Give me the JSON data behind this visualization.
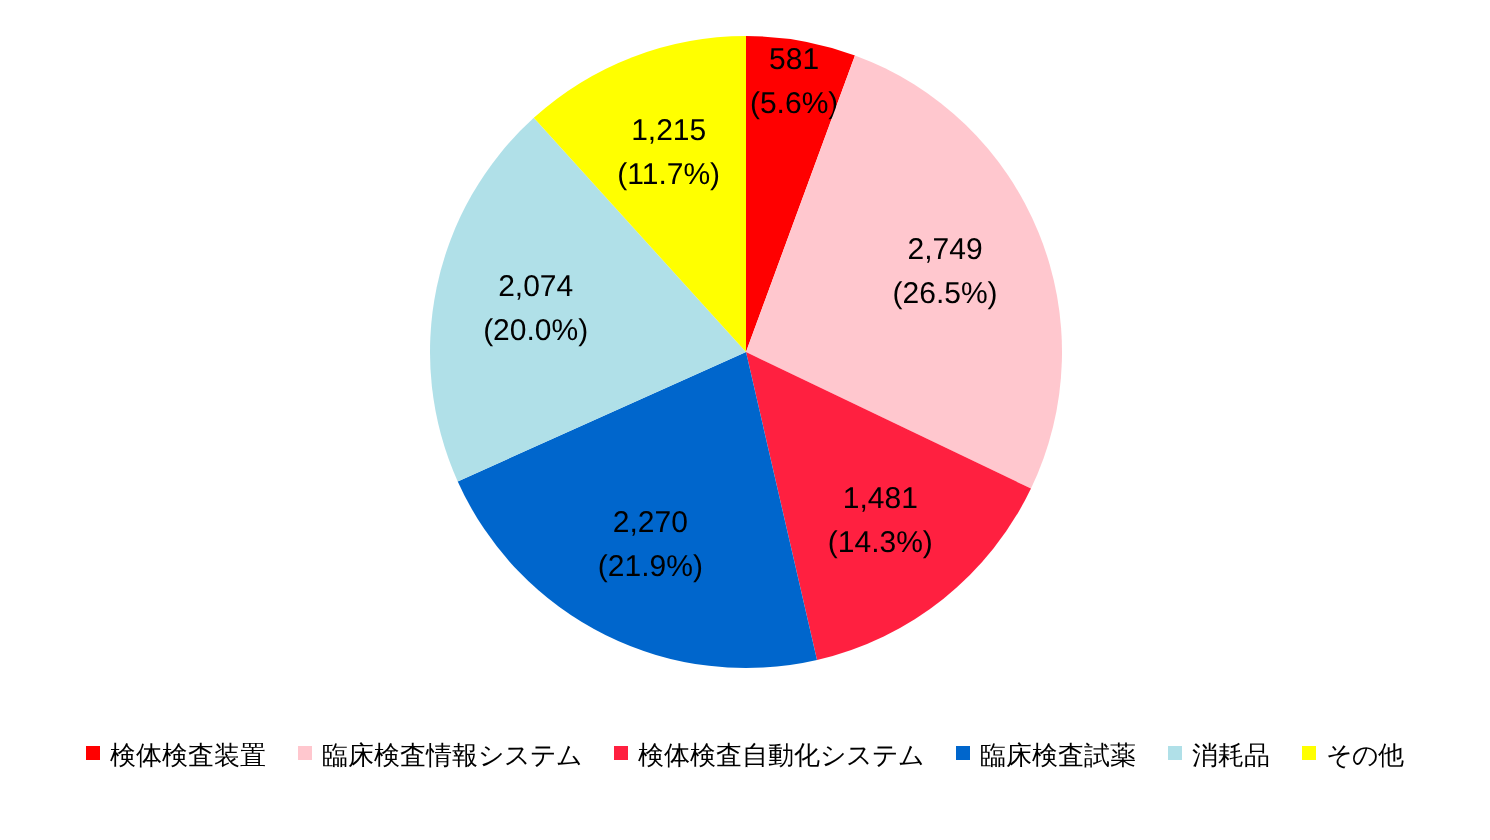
{
  "chart_data": {
    "type": "pie",
    "categories": [
      "検体検査装置",
      "臨床検査情報システム",
      "検体検査自動化システム",
      "臨床検査試薬",
      "消耗品",
      "その他"
    ],
    "values": [
      581,
      2749,
      1481,
      2270,
      2074,
      1215
    ],
    "colors": [
      "#ff0000",
      "#ffc7ce",
      "#ff2040",
      "#0066cc",
      "#b0e0e8",
      "#ffff00"
    ],
    "value_labels": [
      "581\n(5.6%)",
      "2,749\n(26.5%)",
      "1,481\n(14.3%)",
      "2,270\n(21.9%)",
      "2,074\n(20.0%)",
      "1,215\n(11.7%)"
    ],
    "legend": "bottom"
  }
}
